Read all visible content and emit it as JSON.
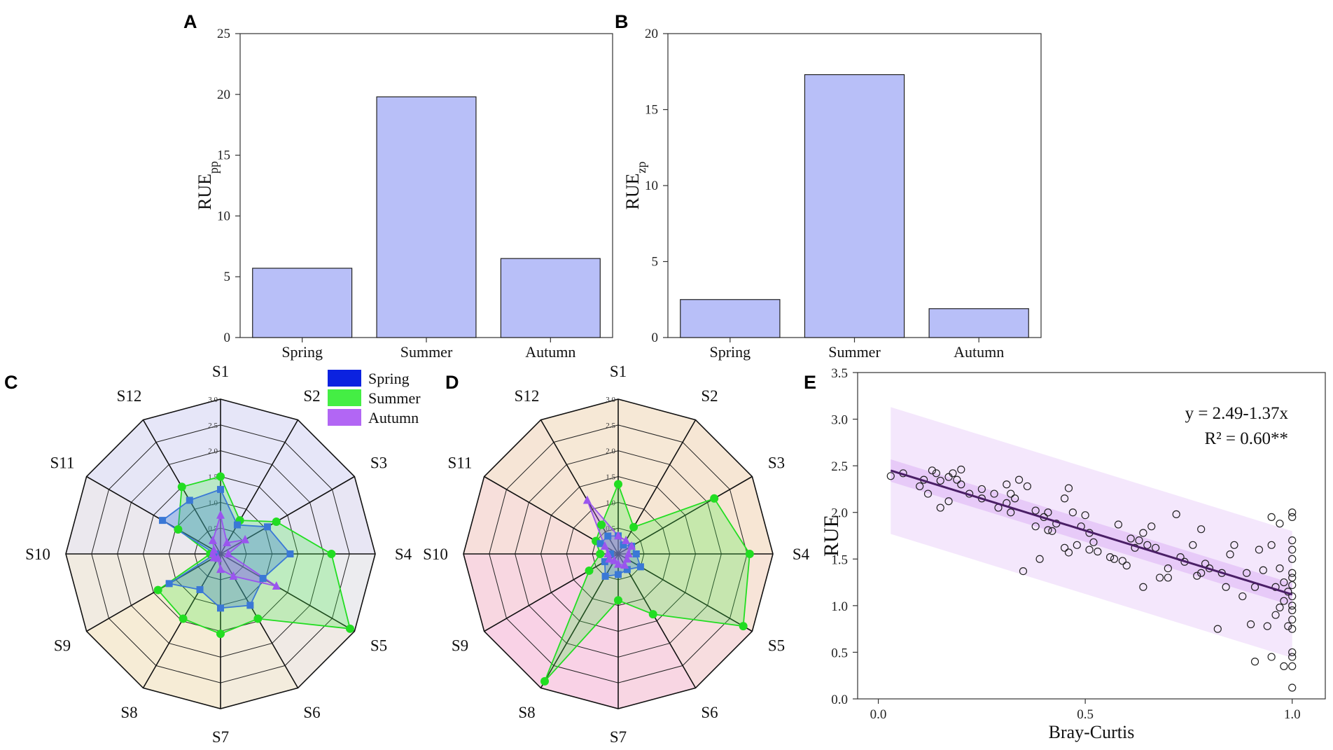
{
  "colors": {
    "bar": "#b8bff8",
    "spring": "#0b22e0",
    "summer": "#44ee44",
    "autumn": "#b266f4",
    "springMark": "#3a78d6",
    "summerMark": "#22dd22",
    "autumnMark": "#9a55ee",
    "regLine": "#4a1e66",
    "band95": "#e4c4f7",
    "band99": "#f2e3fb"
  },
  "chart_data": [
    {
      "id": "A",
      "panel_label": "A",
      "type": "bar",
      "categories": [
        "Spring",
        "Summer",
        "Autumn"
      ],
      "values": [
        5.7,
        19.8,
        6.5
      ],
      "ylabel": "RUE",
      "ylabel_sub": "pp",
      "ylim": [
        0,
        25
      ],
      "yticks": [
        "0",
        "5",
        "10",
        "15",
        "20",
        "25"
      ]
    },
    {
      "id": "B",
      "panel_label": "B",
      "type": "bar",
      "categories": [
        "Spring",
        "Summer",
        "Autumn"
      ],
      "values": [
        2.5,
        17.3,
        1.9
      ],
      "ylabel": "RUE",
      "ylabel_sub": "zp",
      "ylim": [
        0,
        20
      ],
      "yticks": [
        "0",
        "5",
        "10",
        "15",
        "20"
      ]
    },
    {
      "id": "C",
      "panel_label": "C",
      "type": "radar",
      "axes": [
        "S1",
        "S2",
        "S3",
        "S4",
        "S5",
        "S6",
        "S7",
        "S8",
        "S9",
        "S10",
        "S11",
        "S12"
      ],
      "rmax": 3.0,
      "rticks": [
        "0.0",
        "0.5",
        "1.0",
        "1.5",
        "2.0",
        "2.5",
        "3.0"
      ],
      "legend": [
        "Spring",
        "Summer",
        "Autumn"
      ],
      "series": [
        {
          "name": "Spring",
          "values": [
            1.25,
            0.65,
            1.05,
            1.35,
            0.95,
            1.15,
            1.05,
            0.8,
            1.15,
            0.1,
            1.3,
            1.2
          ]
        },
        {
          "name": "Summer",
          "values": [
            1.5,
            0.75,
            1.25,
            2.15,
            2.9,
            1.45,
            1.55,
            1.45,
            1.4,
            0.2,
            0.95,
            1.5
          ]
        },
        {
          "name": "Autumn",
          "values": [
            0.75,
            0.25,
            0.55,
            0.15,
            1.25,
            0.5,
            0.3,
            0.1,
            0.15,
            0.15,
            0.15,
            0.3
          ]
        }
      ]
    },
    {
      "id": "D",
      "panel_label": "D",
      "type": "radar",
      "axes": [
        "S1",
        "S2",
        "S3",
        "S4",
        "S5",
        "S6",
        "S7",
        "S8",
        "S9",
        "S10",
        "S11",
        "S12"
      ],
      "rmax": 3.0,
      "rticks": [
        "0.0",
        "0.5",
        "1.0",
        "1.5",
        "2.0",
        "2.5",
        "3.0"
      ],
      "series": [
        {
          "name": "Spring",
          "values": [
            0.35,
            0.2,
            0.3,
            0.35,
            0.5,
            0.35,
            0.4,
            0.5,
            0.3,
            0.15,
            0.4,
            0.4
          ]
        },
        {
          "name": "Summer",
          "values": [
            1.35,
            0.6,
            2.15,
            2.55,
            2.8,
            1.35,
            0.9,
            2.85,
            0.65,
            0.35,
            0.5,
            0.65
          ]
        },
        {
          "name": "Autumn",
          "values": [
            0.35,
            0.3,
            0.3,
            0.2,
            0.2,
            0.25,
            0.2,
            0.15,
            0.2,
            0.2,
            0.3,
            1.2
          ]
        }
      ]
    },
    {
      "id": "E",
      "panel_label": "E",
      "type": "scatter",
      "xlabel": "Bray-Curtis",
      "ylabel": "RUE",
      "xlim": [
        -0.05,
        1.08
      ],
      "ylim": [
        0,
        3.5
      ],
      "xticks": [
        "0.0",
        "0.5",
        "1.0"
      ],
      "yticks": [
        "0.0",
        "0.5",
        "1.0",
        "1.5",
        "2.0",
        "2.5",
        "3.0",
        "3.5"
      ],
      "equation": "y = 2.49-1.37x",
      "r2_label": "R² = 0.60**",
      "fit": {
        "intercept": 2.49,
        "slope": -1.37,
        "x_range": [
          0.03,
          1.0
        ],
        "band95_halfwidth": 0.12,
        "band99_halfwidth": 0.68
      },
      "points": [
        [
          0.03,
          2.39
        ],
        [
          0.06,
          2.42
        ],
        [
          0.1,
          2.28
        ],
        [
          0.11,
          2.35
        ],
        [
          0.12,
          2.2
        ],
        [
          0.13,
          2.45
        ],
        [
          0.14,
          2.42
        ],
        [
          0.15,
          2.34
        ],
        [
          0.15,
          2.05
        ],
        [
          0.17,
          2.12
        ],
        [
          0.17,
          2.38
        ],
        [
          0.18,
          2.42
        ],
        [
          0.19,
          2.35
        ],
        [
          0.2,
          2.46
        ],
        [
          0.2,
          2.3
        ],
        [
          0.22,
          2.2
        ],
        [
          0.25,
          2.25
        ],
        [
          0.25,
          2.15
        ],
        [
          0.28,
          2.2
        ],
        [
          0.29,
          2.05
        ],
        [
          0.31,
          2.1
        ],
        [
          0.31,
          2.3
        ],
        [
          0.32,
          2.2
        ],
        [
          0.32,
          2.0
        ],
        [
          0.33,
          2.15
        ],
        [
          0.34,
          2.35
        ],
        [
          0.35,
          1.37
        ],
        [
          0.36,
          2.28
        ],
        [
          0.38,
          1.85
        ],
        [
          0.38,
          2.02
        ],
        [
          0.39,
          1.5
        ],
        [
          0.4,
          1.95
        ],
        [
          0.41,
          1.81
        ],
        [
          0.41,
          2.0
        ],
        [
          0.42,
          1.8
        ],
        [
          0.43,
          1.88
        ],
        [
          0.45,
          2.15
        ],
        [
          0.45,
          1.62
        ],
        [
          0.46,
          2.26
        ],
        [
          0.46,
          1.57
        ],
        [
          0.47,
          2.0
        ],
        [
          0.48,
          1.65
        ],
        [
          0.49,
          1.85
        ],
        [
          0.5,
          1.97
        ],
        [
          0.51,
          1.6
        ],
        [
          0.51,
          1.78
        ],
        [
          0.52,
          1.68
        ],
        [
          0.53,
          1.58
        ],
        [
          0.56,
          1.52
        ],
        [
          0.57,
          1.5
        ],
        [
          0.58,
          1.87
        ],
        [
          0.59,
          1.48
        ],
        [
          0.6,
          1.43
        ],
        [
          0.61,
          1.72
        ],
        [
          0.62,
          1.62
        ],
        [
          0.63,
          1.7
        ],
        [
          0.64,
          1.78
        ],
        [
          0.64,
          1.2
        ],
        [
          0.65,
          1.65
        ],
        [
          0.66,
          1.85
        ],
        [
          0.67,
          1.62
        ],
        [
          0.68,
          1.3
        ],
        [
          0.7,
          1.3
        ],
        [
          0.7,
          1.4
        ],
        [
          0.72,
          1.98
        ],
        [
          0.73,
          1.52
        ],
        [
          0.74,
          1.47
        ],
        [
          0.76,
          1.65
        ],
        [
          0.77,
          1.32
        ],
        [
          0.78,
          1.82
        ],
        [
          0.78,
          1.35
        ],
        [
          0.79,
          1.45
        ],
        [
          0.8,
          1.4
        ],
        [
          0.82,
          0.75
        ],
        [
          0.83,
          1.35
        ],
        [
          0.84,
          1.2
        ],
        [
          0.85,
          1.55
        ],
        [
          0.86,
          1.65
        ],
        [
          0.88,
          1.1
        ],
        [
          0.89,
          1.35
        ],
        [
          0.9,
          0.8
        ],
        [
          0.91,
          1.2
        ],
        [
          0.91,
          0.4
        ],
        [
          0.92,
          1.6
        ],
        [
          0.93,
          1.38
        ],
        [
          0.94,
          0.78
        ],
        [
          0.95,
          1.95
        ],
        [
          0.95,
          1.65
        ],
        [
          0.95,
          0.45
        ],
        [
          0.96,
          1.2
        ],
        [
          0.96,
          0.9
        ],
        [
          0.97,
          1.88
        ],
        [
          0.97,
          1.4
        ],
        [
          0.97,
          0.98
        ],
        [
          0.98,
          1.25
        ],
        [
          0.98,
          1.05
        ],
        [
          0.98,
          0.35
        ],
        [
          0.99,
          1.15
        ],
        [
          0.99,
          0.78
        ],
        [
          1.0,
          2.0
        ],
        [
          1.0,
          1.95
        ],
        [
          1.0,
          1.7
        ],
        [
          1.0,
          1.6
        ],
        [
          1.0,
          1.5
        ],
        [
          1.0,
          1.35
        ],
        [
          1.0,
          1.3
        ],
        [
          1.0,
          1.22
        ],
        [
          1.0,
          1.1
        ],
        [
          1.0,
          1.0
        ],
        [
          1.0,
          0.95
        ],
        [
          1.0,
          0.85
        ],
        [
          1.0,
          0.75
        ],
        [
          1.0,
          0.5
        ],
        [
          1.0,
          0.45
        ],
        [
          1.0,
          0.35
        ],
        [
          1.0,
          0.12
        ]
      ]
    }
  ]
}
